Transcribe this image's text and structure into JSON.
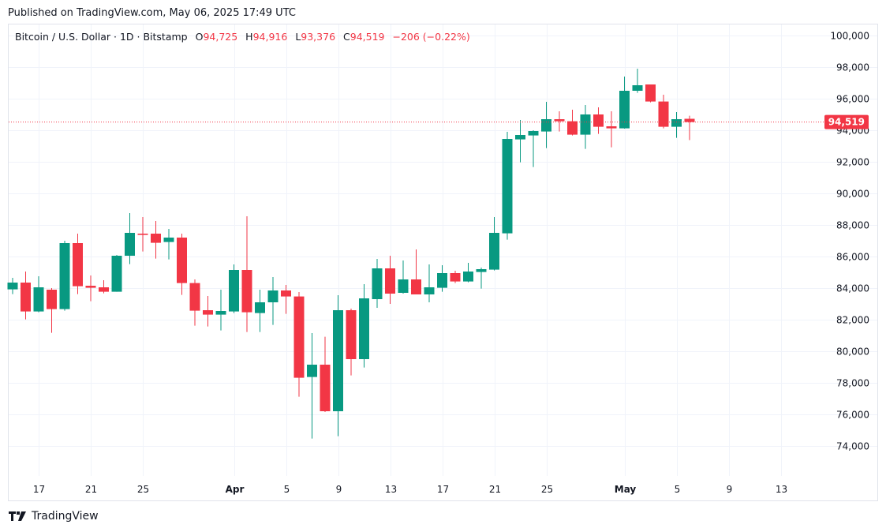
{
  "header": {
    "published": "Published on TradingView.com, May 06, 2025 17:49 UTC"
  },
  "legend": {
    "symbol": "Bitcoin / U.S. Dollar · 1D · Bitstamp",
    "o_label": "O",
    "o": "94,725",
    "h_label": "H",
    "h": "94,916",
    "l_label": "L",
    "l": "93,376",
    "c_label": "C",
    "c": "94,519",
    "change": "−206 (−0.22%)"
  },
  "footer": {
    "brand": "TradingView"
  },
  "colors": {
    "up": "#089981",
    "down": "#f23645",
    "grid": "#f0f3fa",
    "last_price": "#f23645"
  },
  "chart_data": {
    "type": "candlestick",
    "title": "Bitcoin / U.S. Dollar · 1D · Bitstamp",
    "ylim": [
      72000,
      100500
    ],
    "grid": true,
    "last_price_label": "94,519",
    "last_price": 94519,
    "y_ticks": [
      {
        "value": 100000,
        "label": "100,000"
      },
      {
        "value": 98000,
        "label": "98,000"
      },
      {
        "value": 96000,
        "label": "96,000"
      },
      {
        "value": 94000,
        "label": "94,000"
      },
      {
        "value": 92000,
        "label": "92,000"
      },
      {
        "value": 90000,
        "label": "90,000"
      },
      {
        "value": 88000,
        "label": "88,000"
      },
      {
        "value": 86000,
        "label": "86,000"
      },
      {
        "value": 84000,
        "label": "84,000"
      },
      {
        "value": 82000,
        "label": "82,000"
      },
      {
        "value": 80000,
        "label": "80,000"
      },
      {
        "value": 78000,
        "label": "78,000"
      },
      {
        "value": 76000,
        "label": "76,000"
      },
      {
        "value": 74000,
        "label": "74,000"
      }
    ],
    "x_ticks": [
      {
        "date": "2025-03-17",
        "label": "17",
        "bold": false
      },
      {
        "date": "2025-03-21",
        "label": "21",
        "bold": false
      },
      {
        "date": "2025-03-25",
        "label": "25",
        "bold": false
      },
      {
        "date": "2025-04-01",
        "label": "Apr",
        "bold": true
      },
      {
        "date": "2025-04-05",
        "label": "5",
        "bold": false
      },
      {
        "date": "2025-04-09",
        "label": "9",
        "bold": false
      },
      {
        "date": "2025-04-13",
        "label": "13",
        "bold": false
      },
      {
        "date": "2025-04-17",
        "label": "17",
        "bold": false
      },
      {
        "date": "2025-04-21",
        "label": "21",
        "bold": false
      },
      {
        "date": "2025-04-25",
        "label": "25",
        "bold": false
      },
      {
        "date": "2025-05-01",
        "label": "May",
        "bold": true
      },
      {
        "date": "2025-05-05",
        "label": "5",
        "bold": false
      },
      {
        "date": "2025-05-09",
        "label": "9",
        "bold": false
      },
      {
        "date": "2025-05-13",
        "label": "13",
        "bold": false
      }
    ],
    "x_range": [
      "2025-03-15",
      "2025-05-19"
    ],
    "candles": [
      {
        "date": "2025-03-15",
        "o": 83920,
        "h": 84650,
        "l": 83620,
        "c": 84350
      },
      {
        "date": "2025-03-16",
        "o": 84350,
        "h": 85050,
        "l": 82020,
        "c": 82520
      },
      {
        "date": "2025-03-17",
        "o": 82520,
        "h": 84750,
        "l": 82470,
        "c": 84050
      },
      {
        "date": "2025-03-18",
        "o": 83900,
        "h": 84000,
        "l": 81170,
        "c": 82670
      },
      {
        "date": "2025-03-19",
        "o": 82670,
        "h": 87000,
        "l": 82570,
        "c": 86850
      },
      {
        "date": "2025-03-20",
        "o": 86850,
        "h": 87450,
        "l": 83620,
        "c": 84120
      },
      {
        "date": "2025-03-21",
        "o": 84150,
        "h": 84800,
        "l": 83170,
        "c": 84020
      },
      {
        "date": "2025-03-22",
        "o": 84050,
        "h": 84500,
        "l": 83670,
        "c": 83770
      },
      {
        "date": "2025-03-23",
        "o": 83770,
        "h": 86100,
        "l": 83770,
        "c": 86050
      },
      {
        "date": "2025-03-24",
        "o": 86050,
        "h": 88750,
        "l": 85520,
        "c": 87500
      },
      {
        "date": "2025-03-25",
        "o": 87450,
        "h": 88500,
        "l": 86320,
        "c": 87370
      },
      {
        "date": "2025-03-26",
        "o": 87450,
        "h": 88250,
        "l": 85870,
        "c": 86870
      },
      {
        "date": "2025-03-27",
        "o": 86920,
        "h": 87750,
        "l": 85820,
        "c": 87200
      },
      {
        "date": "2025-03-28",
        "o": 87200,
        "h": 87450,
        "l": 83570,
        "c": 84320
      },
      {
        "date": "2025-03-29",
        "o": 84320,
        "h": 84550,
        "l": 81620,
        "c": 82570
      },
      {
        "date": "2025-03-30",
        "o": 82600,
        "h": 83500,
        "l": 81570,
        "c": 82320
      },
      {
        "date": "2025-03-31",
        "o": 82320,
        "h": 83900,
        "l": 81320,
        "c": 82550
      },
      {
        "date": "2025-04-01",
        "o": 82520,
        "h": 85500,
        "l": 82420,
        "c": 85150
      },
      {
        "date": "2025-04-02",
        "o": 85150,
        "h": 88550,
        "l": 81220,
        "c": 82470
      },
      {
        "date": "2025-04-03",
        "o": 82420,
        "h": 83900,
        "l": 81220,
        "c": 83100
      },
      {
        "date": "2025-04-04",
        "o": 83100,
        "h": 84700,
        "l": 81670,
        "c": 83850
      },
      {
        "date": "2025-04-05",
        "o": 83850,
        "h": 84200,
        "l": 82370,
        "c": 83470
      },
      {
        "date": "2025-04-06",
        "o": 83470,
        "h": 83750,
        "l": 77120,
        "c": 78320
      },
      {
        "date": "2025-04-07",
        "o": 78370,
        "h": 81150,
        "l": 74470,
        "c": 79150
      },
      {
        "date": "2025-04-08",
        "o": 79150,
        "h": 80920,
        "l": 76150,
        "c": 76200
      },
      {
        "date": "2025-04-09",
        "o": 76200,
        "h": 83550,
        "l": 74620,
        "c": 82600
      },
      {
        "date": "2025-04-10",
        "o": 82600,
        "h": 82700,
        "l": 78470,
        "c": 79500
      },
      {
        "date": "2025-04-11",
        "o": 79500,
        "h": 84250,
        "l": 78970,
        "c": 83350
      },
      {
        "date": "2025-04-12",
        "o": 83300,
        "h": 85850,
        "l": 82750,
        "c": 85250
      },
      {
        "date": "2025-04-13",
        "o": 85250,
        "h": 86050,
        "l": 83000,
        "c": 83650
      },
      {
        "date": "2025-04-14",
        "o": 83700,
        "h": 85750,
        "l": 83650,
        "c": 84550
      },
      {
        "date": "2025-04-15",
        "o": 84550,
        "h": 86450,
        "l": 83600,
        "c": 83600
      },
      {
        "date": "2025-04-16",
        "o": 83600,
        "h": 85500,
        "l": 83100,
        "c": 84050
      },
      {
        "date": "2025-04-17",
        "o": 84020,
        "h": 85450,
        "l": 83770,
        "c": 84950
      },
      {
        "date": "2025-04-18",
        "o": 84950,
        "h": 85100,
        "l": 84320,
        "c": 84420
      },
      {
        "date": "2025-04-19",
        "o": 84420,
        "h": 85600,
        "l": 84370,
        "c": 85050
      },
      {
        "date": "2025-04-20",
        "o": 85020,
        "h": 85300,
        "l": 83970,
        "c": 85200
      },
      {
        "date": "2025-04-21",
        "o": 85170,
        "h": 88500,
        "l": 85120,
        "c": 87500
      },
      {
        "date": "2025-04-22",
        "o": 87470,
        "h": 93900,
        "l": 87070,
        "c": 93450
      },
      {
        "date": "2025-04-23",
        "o": 93420,
        "h": 94650,
        "l": 91970,
        "c": 93700
      },
      {
        "date": "2025-04-24",
        "o": 93670,
        "h": 94000,
        "l": 91670,
        "c": 93950
      },
      {
        "date": "2025-04-25",
        "o": 93920,
        "h": 95800,
        "l": 92870,
        "c": 94700
      },
      {
        "date": "2025-04-26",
        "o": 94700,
        "h": 95200,
        "l": 93920,
        "c": 94570
      },
      {
        "date": "2025-04-27",
        "o": 94570,
        "h": 95300,
        "l": 93670,
        "c": 93720
      },
      {
        "date": "2025-04-28",
        "o": 93720,
        "h": 95600,
        "l": 92820,
        "c": 95000
      },
      {
        "date": "2025-04-29",
        "o": 95000,
        "h": 95450,
        "l": 93770,
        "c": 94220
      },
      {
        "date": "2025-04-30",
        "o": 94250,
        "h": 95200,
        "l": 92920,
        "c": 94120
      },
      {
        "date": "2025-05-01",
        "o": 94120,
        "h": 97400,
        "l": 94100,
        "c": 96500
      },
      {
        "date": "2025-05-02",
        "o": 96500,
        "h": 97900,
        "l": 96370,
        "c": 96850
      },
      {
        "date": "2025-05-03",
        "o": 96900,
        "h": 96900,
        "l": 95770,
        "c": 95820
      },
      {
        "date": "2025-05-04",
        "o": 95820,
        "h": 96250,
        "l": 94120,
        "c": 94220
      },
      {
        "date": "2025-05-05",
        "o": 94220,
        "h": 95150,
        "l": 93520,
        "c": 94700
      },
      {
        "date": "2025-05-06",
        "o": 94725,
        "h": 94916,
        "l": 93376,
        "c": 94519
      }
    ]
  }
}
